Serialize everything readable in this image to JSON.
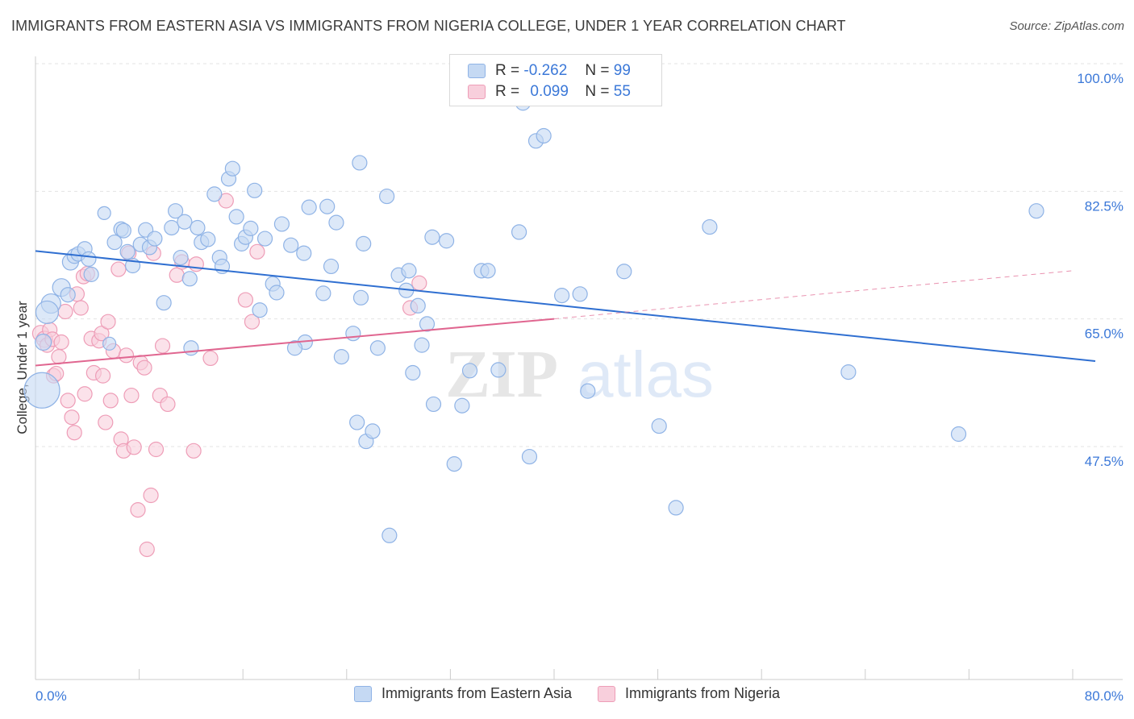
{
  "header": {
    "title": "IMMIGRANTS FROM EASTERN ASIA VS IMMIGRANTS FROM NIGERIA COLLEGE, UNDER 1 YEAR CORRELATION CHART",
    "source": "Source: ZipAtlas.com"
  },
  "watermark": {
    "zip": "ZIP",
    "atlas": "atlas"
  },
  "legend": {
    "r_label": "R =",
    "n_label": "N =",
    "rows": [
      {
        "r": "-0.262",
        "n": "99"
      },
      {
        "r": "0.099",
        "n": "55"
      }
    ]
  },
  "colors": {
    "blue_fill": "#c5d9f3",
    "blue_stroke": "#8fb3e6",
    "blue_line": "#2f6fd1",
    "pink_fill": "#f8cfdc",
    "pink_stroke": "#ee9db7",
    "pink_line": "#e06690",
    "tick_label": "#3b78d8",
    "grid": "#e3e3e3"
  },
  "chart_data": {
    "type": "scatter",
    "title": "IMMIGRANTS FROM EASTERN ASIA VS IMMIGRANTS FROM NIGERIA COLLEGE, UNDER 1 YEAR CORRELATION CHART",
    "ylabel": "College, Under 1 year",
    "xlabel": "",
    "xlim": [
      0,
      80
    ],
    "ylim": [
      30,
      103
    ],
    "x_tick_labels": [
      "0.0%",
      "80.0%"
    ],
    "y_ticks": [
      100,
      82.5,
      65,
      47.5
    ],
    "y_tick_labels": [
      "100.0%",
      "82.5%",
      "65.0%",
      "47.5%"
    ],
    "grid": true,
    "legend_position": "bottom",
    "series": [
      {
        "name": "Immigrants from Eastern Asia",
        "color": "#8fb3e6",
        "trend": {
          "x1": 0,
          "y1": 76.3,
          "x2": 80,
          "y2": 61.2,
          "style": "solid"
        },
        "points": [
          [
            0.5,
            57.2,
            22
          ],
          [
            1.2,
            69.1,
            12
          ],
          [
            0.9,
            67.9,
            14
          ],
          [
            0.6,
            63.8,
            10
          ],
          [
            2.0,
            71.3,
            11
          ],
          [
            2.5,
            70.3,
            9
          ],
          [
            2.7,
            74.8,
            10
          ],
          [
            3.0,
            75.6,
            9
          ],
          [
            3.3,
            75.9,
            9
          ],
          [
            3.8,
            76.6,
            9
          ],
          [
            4.1,
            75.2,
            9
          ],
          [
            4.3,
            73.1,
            9
          ],
          [
            5.3,
            81.5,
            8
          ],
          [
            5.7,
            63.6,
            8
          ],
          [
            6.1,
            77.5,
            9
          ],
          [
            6.6,
            79.3,
            9
          ],
          [
            6.8,
            79.1,
            9
          ],
          [
            7.1,
            76.2,
            9
          ],
          [
            7.5,
            74.3,
            9
          ],
          [
            8.1,
            77.2,
            9
          ],
          [
            8.5,
            79.2,
            9
          ],
          [
            8.8,
            76.8,
            9
          ],
          [
            9.2,
            78.0,
            9
          ],
          [
            9.9,
            69.2,
            9
          ],
          [
            10.5,
            79.5,
            9
          ],
          [
            10.8,
            81.8,
            9
          ],
          [
            11.2,
            75.4,
            9
          ],
          [
            11.5,
            80.3,
            9
          ],
          [
            11.9,
            72.5,
            9
          ],
          [
            12.5,
            79.5,
            9
          ],
          [
            12.8,
            77.5,
            9
          ],
          [
            13.3,
            77.9,
            9
          ],
          [
            13.8,
            84.1,
            9
          ],
          [
            14.2,
            75.4,
            9
          ],
          [
            14.4,
            74.2,
            9
          ],
          [
            14.9,
            86.2,
            9
          ],
          [
            15.2,
            87.6,
            9
          ],
          [
            15.5,
            81.0,
            9
          ],
          [
            15.9,
            77.3,
            9
          ],
          [
            16.2,
            78.2,
            9
          ],
          [
            16.6,
            79.4,
            9
          ],
          [
            16.9,
            84.6,
            9
          ],
          [
            17.3,
            68.2,
            9
          ],
          [
            17.7,
            78.0,
            9
          ],
          [
            18.3,
            71.8,
            9
          ],
          [
            18.6,
            70.6,
            9
          ],
          [
            19.0,
            80.0,
            9
          ],
          [
            19.7,
            77.1,
            9
          ],
          [
            20.7,
            76.0,
            9
          ],
          [
            20.8,
            63.8,
            9
          ],
          [
            21.1,
            82.3,
            9
          ],
          [
            22.2,
            70.5,
            9
          ],
          [
            22.5,
            82.4,
            9
          ],
          [
            22.8,
            74.2,
            9
          ],
          [
            23.2,
            80.2,
            9
          ],
          [
            23.6,
            61.8,
            9
          ],
          [
            24.5,
            65.0,
            9
          ],
          [
            24.8,
            52.8,
            9
          ],
          [
            25.3,
            77.3,
            9
          ],
          [
            25.0,
            88.4,
            9
          ],
          [
            25.1,
            69.9,
            9
          ],
          [
            25.5,
            50.2,
            9
          ],
          [
            26.0,
            51.6,
            9
          ],
          [
            27.1,
            83.8,
            9
          ],
          [
            27.3,
            37.3,
            9
          ],
          [
            28.0,
            73.0,
            9
          ],
          [
            28.6,
            70.9,
            9
          ],
          [
            28.8,
            73.6,
            9
          ],
          [
            29.1,
            59.6,
            9
          ],
          [
            29.5,
            68.8,
            9
          ],
          [
            29.8,
            63.4,
            9
          ],
          [
            30.2,
            66.3,
            9
          ],
          [
            30.6,
            78.2,
            9
          ],
          [
            30.7,
            55.3,
            9
          ],
          [
            31.7,
            77.7,
            9
          ],
          [
            32.3,
            47.1,
            9
          ],
          [
            32.9,
            55.1,
            9
          ],
          [
            33.5,
            59.9,
            9
          ],
          [
            34.4,
            73.6,
            9
          ],
          [
            34.9,
            73.6,
            9
          ],
          [
            35.7,
            60.0,
            9
          ],
          [
            37.6,
            96.6,
            9
          ],
          [
            37.3,
            78.9,
            9
          ],
          [
            38.1,
            48.1,
            9
          ],
          [
            38.6,
            91.4,
            9
          ],
          [
            39.2,
            92.1,
            9
          ],
          [
            40.6,
            70.2,
            9
          ],
          [
            42.0,
            70.4,
            9
          ],
          [
            42.6,
            57.1,
            9
          ],
          [
            45.4,
            73.5,
            9
          ],
          [
            48.1,
            52.3,
            9
          ],
          [
            49.4,
            41.1,
            9
          ],
          [
            52.0,
            79.6,
            9
          ],
          [
            62.7,
            59.7,
            9
          ],
          [
            71.2,
            51.2,
            9
          ],
          [
            77.2,
            81.8,
            9
          ],
          [
            26.4,
            63.0,
            9
          ],
          [
            20.0,
            63.0,
            9
          ],
          [
            12.0,
            63.0,
            9
          ]
        ]
      },
      {
        "name": "Immigrants from Nigeria",
        "color": "#ee9db7",
        "trend": {
          "x1": 0,
          "y1": 60.6,
          "x2": 40,
          "y2": 67.0,
          "style": "solid",
          "x3": 80,
          "y3": 73.6,
          "style_ext": "dashed"
        },
        "points": [
          [
            0.4,
            65.0,
            10
          ],
          [
            0.7,
            64.2,
            10
          ],
          [
            0.9,
            63.4,
            9
          ],
          [
            1.1,
            65.5,
            9
          ],
          [
            1.3,
            64.2,
            9
          ],
          [
            1.4,
            59.2,
            9
          ],
          [
            1.6,
            59.5,
            9
          ],
          [
            1.8,
            61.8,
            9
          ],
          [
            2.0,
            63.8,
            9
          ],
          [
            2.3,
            68.0,
            9
          ],
          [
            2.5,
            55.8,
            9
          ],
          [
            2.8,
            53.5,
            9
          ],
          [
            3.0,
            51.4,
            9
          ],
          [
            3.2,
            70.4,
            9
          ],
          [
            3.5,
            68.5,
            9
          ],
          [
            3.7,
            72.8,
            9
          ],
          [
            3.8,
            56.7,
            9
          ],
          [
            4.0,
            73.2,
            9
          ],
          [
            4.3,
            64.3,
            9
          ],
          [
            4.5,
            59.6,
            9
          ],
          [
            4.9,
            64.0,
            9
          ],
          [
            5.1,
            65.0,
            9
          ],
          [
            5.2,
            59.2,
            9
          ],
          [
            5.4,
            52.8,
            9
          ],
          [
            5.6,
            66.6,
            9
          ],
          [
            5.8,
            55.8,
            9
          ],
          [
            6.0,
            62.6,
            9
          ],
          [
            6.4,
            73.8,
            9
          ],
          [
            6.6,
            50.5,
            9
          ],
          [
            6.8,
            48.9,
            9
          ],
          [
            7.0,
            62.0,
            9
          ],
          [
            7.2,
            76.0,
            9
          ],
          [
            7.4,
            56.5,
            9
          ],
          [
            7.6,
            49.4,
            9
          ],
          [
            7.9,
            40.8,
            9
          ],
          [
            8.1,
            61.0,
            9
          ],
          [
            8.4,
            60.3,
            9
          ],
          [
            8.6,
            35.4,
            9
          ],
          [
            8.9,
            42.8,
            9
          ],
          [
            9.1,
            76.0,
            9
          ],
          [
            9.3,
            49.1,
            9
          ],
          [
            9.6,
            56.5,
            9
          ],
          [
            9.8,
            63.3,
            9
          ],
          [
            10.2,
            55.3,
            9
          ],
          [
            10.9,
            73.0,
            9
          ],
          [
            11.3,
            74.8,
            9
          ],
          [
            12.2,
            48.9,
            9
          ],
          [
            12.4,
            74.5,
            9
          ],
          [
            13.5,
            61.6,
            9
          ],
          [
            14.7,
            83.2,
            9
          ],
          [
            16.2,
            69.6,
            9
          ],
          [
            16.7,
            66.6,
            9
          ],
          [
            17.1,
            76.2,
            9
          ],
          [
            28.9,
            68.5,
            9
          ],
          [
            29.6,
            71.9,
            9
          ]
        ]
      }
    ]
  },
  "axis": {
    "x_left_label": "0.0%",
    "x_right_label": "80.0%"
  }
}
